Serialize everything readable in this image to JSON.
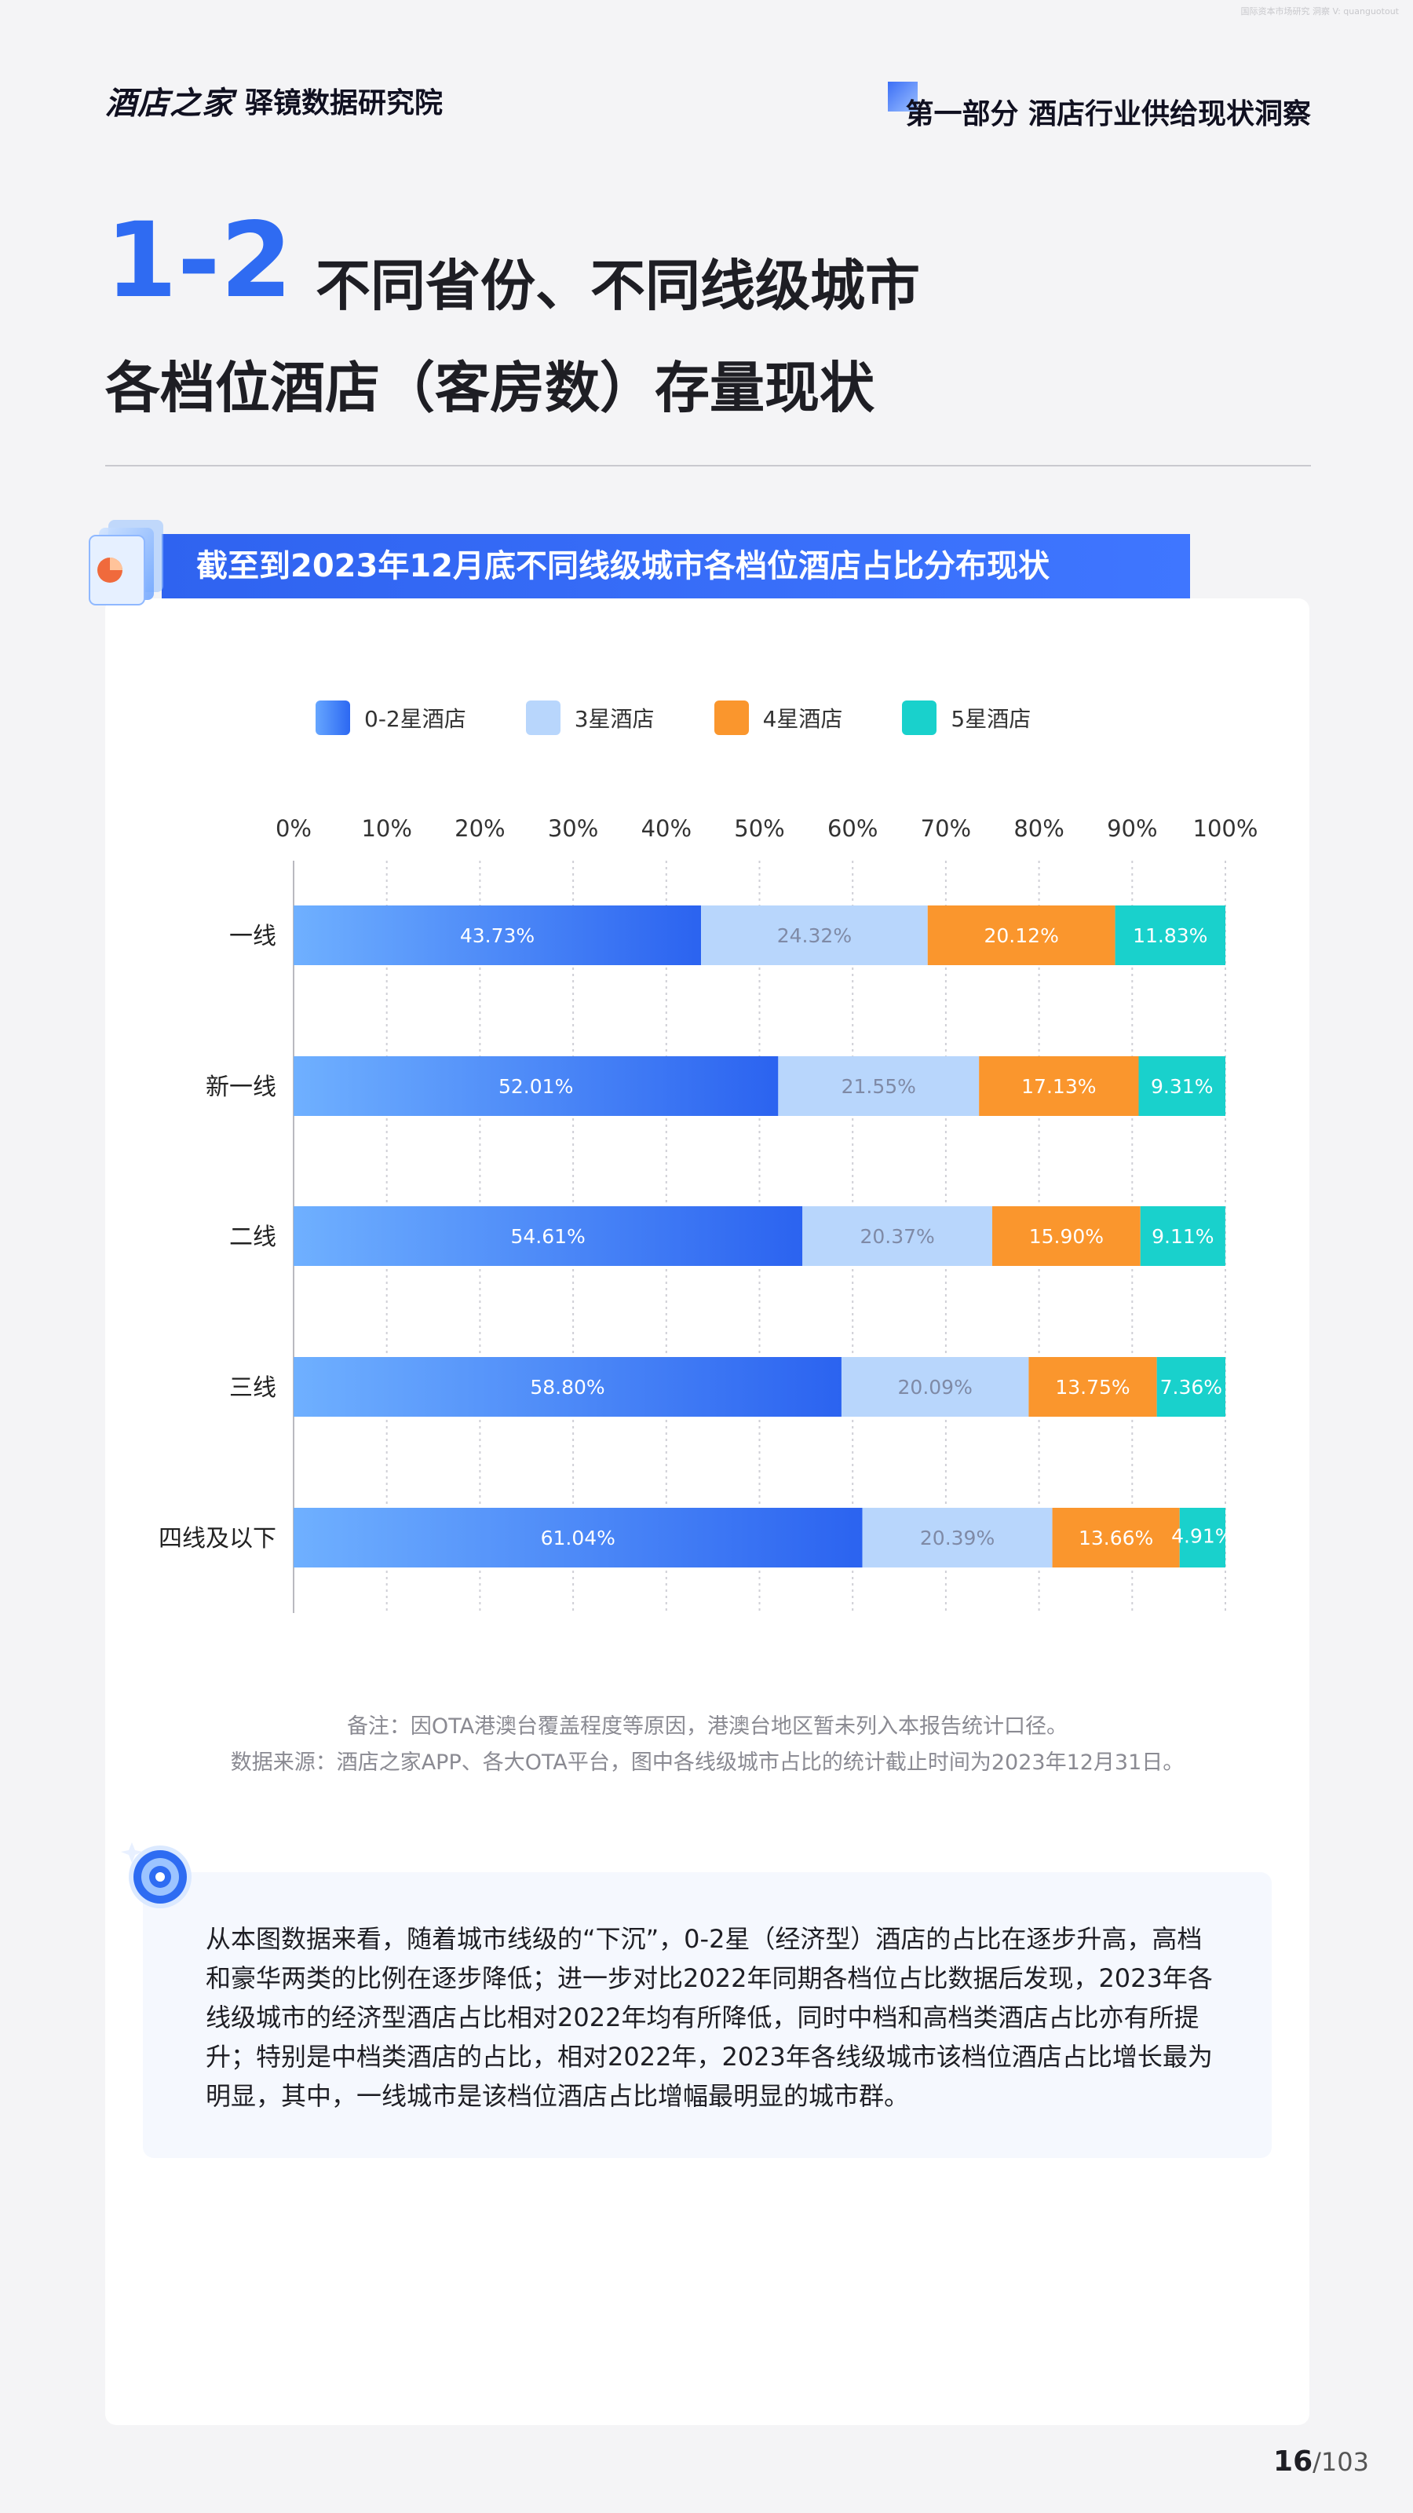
{
  "watermark": "国际资本市场研究 洞察 V: quanguotout",
  "header": {
    "logo_text": "酒店之家",
    "brand_name": "驿镜数据研究院",
    "part_title": "第一部分 酒店行业供给现状洞察"
  },
  "title": {
    "number": "1-2",
    "line1": "不同省份、不同线级城市",
    "line2": "各档位酒店（客房数）存量现状"
  },
  "section": {
    "banner": "截至到2023年12月底不同线级城市各档位酒店占比分布现状"
  },
  "chart_data": {
    "type": "bar",
    "orientation": "horizontal",
    "stacked": true,
    "percent_stacked": true,
    "categories": [
      "一线",
      "新一线",
      "二线",
      "三线",
      "四线及以下"
    ],
    "x_ticks": [
      "0%",
      "10%",
      "20%",
      "30%",
      "40%",
      "50%",
      "60%",
      "70%",
      "80%",
      "90%",
      "100%"
    ],
    "xlim": [
      0,
      100
    ],
    "grid": "vertical dotted",
    "legend_position": "top",
    "series": [
      {
        "name": "0-2星酒店",
        "color": "#3a78f5",
        "values": [
          43.73,
          52.01,
          54.61,
          58.8,
          61.04
        ],
        "labels": [
          "43.73%",
          "52.01%",
          "54.61%",
          "58.80%",
          "61.04%"
        ]
      },
      {
        "name": "3星酒店",
        "color": "#b8d6fc",
        "values": [
          24.32,
          21.55,
          20.37,
          20.09,
          20.39
        ],
        "labels": [
          "24.32%",
          "21.55%",
          "20.37%",
          "20.09%",
          "20.39%"
        ]
      },
      {
        "name": "4星酒店",
        "color": "#fa962d",
        "values": [
          20.12,
          17.13,
          15.9,
          13.75,
          13.66
        ],
        "labels": [
          "20.12%",
          "17.13%",
          "15.90%",
          "13.75%",
          "13.66%"
        ]
      },
      {
        "name": "5星酒店",
        "color": "#19d1cc",
        "values": [
          11.83,
          9.31,
          9.11,
          7.36,
          4.91
        ],
        "labels": [
          "11.83%",
          "9.31%",
          "9.11%",
          "7.36%",
          "4.91%"
        ]
      }
    ]
  },
  "notes": {
    "remark": "备注：因OTA港澳台覆盖程度等原因，港澳台地区暂未列入本报告统计口径。",
    "source": "数据来源：酒店之家APP、各大OTA平台，图中各线级城市占比的统计截止时间为2023年12月31日。"
  },
  "insight": {
    "text": "从本图数据来看，随着城市线级的“下沉”，0-2星（经济型）酒店的占比在逐步升高，高档和豪华两类的比例在逐步降低；进一步对比2022年同期各档位占比数据后发现，2023年各线级城市的经济型酒店占比相对2022年均有所降低，同时中档和高档类酒店占比亦有所提升；特别是中档类酒店的占比，相对2022年，2023年各线级城市该档位酒店占比增长最为明显，其中，一线城市是该档位酒店占比增幅最明显的城市群。"
  },
  "page": {
    "current": "16",
    "total": "/103"
  }
}
